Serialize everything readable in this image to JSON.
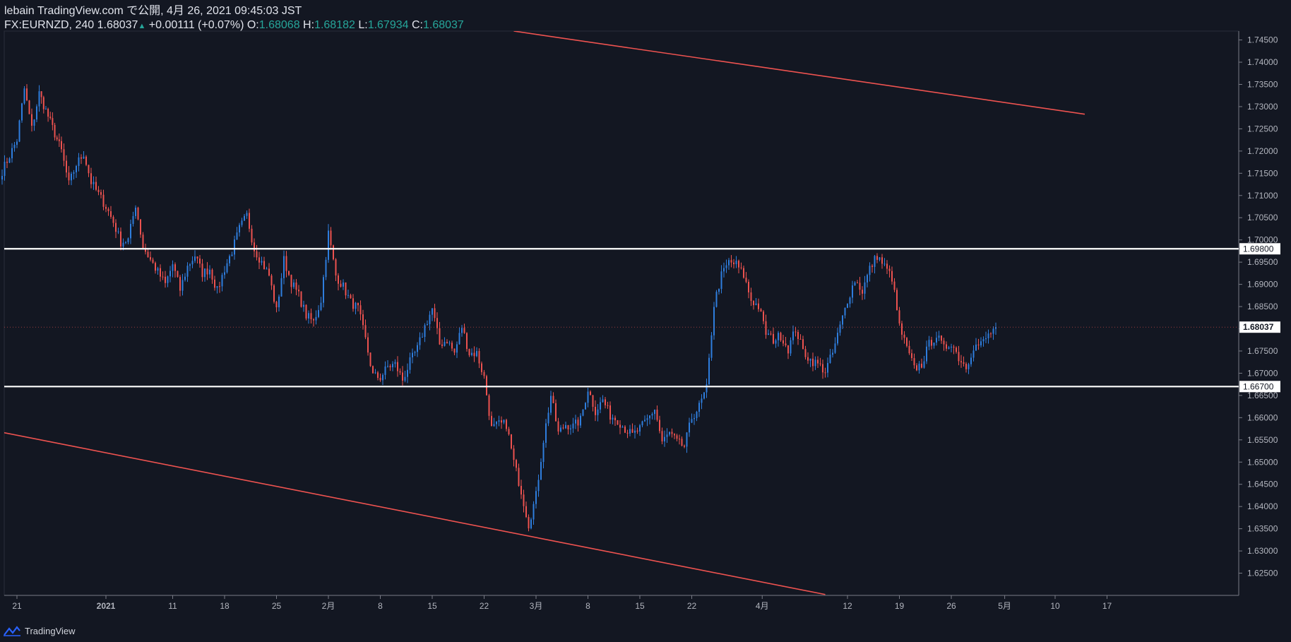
{
  "header": {
    "published": "lebain TradingView.com で公開, 4月 26, 2021 09:45:03 JST",
    "symbol": "FX:EURNZD, 240",
    "last": "1.68037",
    "change": "+0.00111 (+0.07%)",
    "o_label": "O:",
    "o_value": "1.68068",
    "h_label": "H:",
    "h_value": "1.68182",
    "l_label": "L:",
    "l_value": "1.67934",
    "c_label": "C:",
    "c_value": "1.68037"
  },
  "footer": {
    "brand": "TradingView"
  },
  "colors": {
    "bg": "#131722",
    "up": "#2f7fe0",
    "down": "#ef5350",
    "trend": "#ef5350",
    "level": "#ffffff",
    "axis": "#b2b5be"
  },
  "chart_data": {
    "type": "candlestick",
    "symbol": "FX:EURNZD",
    "timeframe": "240",
    "ylim": [
      1.62,
      1.747
    ],
    "y_ticks": [
      "1.62500",
      "1.63000",
      "1.63500",
      "1.64000",
      "1.64500",
      "1.65000",
      "1.65500",
      "1.66000",
      "1.66500",
      "1.67000",
      "1.67500",
      "1.68000",
      "1.68500",
      "1.69000",
      "1.69500",
      "1.70000",
      "1.70500",
      "1.71000",
      "1.71500",
      "1.72000",
      "1.72500",
      "1.73000",
      "1.73500",
      "1.74000",
      "1.74500"
    ],
    "x_ticks": [
      "21",
      "2021",
      "11",
      "18",
      "25",
      "2月",
      "8",
      "15",
      "22",
      "3月",
      "8",
      "15",
      "22",
      "4月",
      "12",
      "19",
      "26",
      "5月",
      "10",
      "17"
    ],
    "bold_x_ticks": [
      "2021"
    ],
    "horizontal_levels": [
      {
        "label": "1.69800",
        "value": 1.698
      },
      {
        "label": "1.66700",
        "value": 1.667
      }
    ],
    "price_tag": {
      "label": "1.68037",
      "value": 1.68037
    },
    "trendlines": [
      {
        "from": {
          "date": "2021-02-26",
          "price": 1.747
        },
        "to": {
          "date": "2021-05-14",
          "price": 1.7283
        }
      },
      {
        "from": {
          "date": "2020-12-19",
          "price": 1.6567
        },
        "to": {
          "date": "2021-04-09",
          "price": 1.6202
        }
      }
    ],
    "waypoints": [
      [
        "2020-12-19",
        1.7155
      ],
      [
        "2020-12-21",
        1.7225
      ],
      [
        "2020-12-22",
        1.734
      ],
      [
        "2020-12-23",
        1.725
      ],
      [
        "2020-12-24",
        1.733
      ],
      [
        "2020-12-27",
        1.72
      ],
      [
        "2020-12-28",
        1.7125
      ],
      [
        "2020-12-29",
        1.717
      ],
      [
        "2020-12-30",
        1.7195
      ],
      [
        "2020-12-31",
        1.713
      ],
      [
        "2021-01-02",
        1.7075
      ],
      [
        "2021-01-03",
        1.704
      ],
      [
        "2021-01-04",
        1.6995
      ],
      [
        "2021-01-05",
        1.7
      ],
      [
        "2021-01-06",
        1.708
      ],
      [
        "2021-01-07",
        1.6985
      ],
      [
        "2021-01-08",
        1.6955
      ],
      [
        "2021-01-10",
        1.69
      ],
      [
        "2021-01-11",
        1.6945
      ],
      [
        "2021-01-12",
        1.6888
      ],
      [
        "2021-01-13",
        1.694
      ],
      [
        "2021-01-14",
        1.6965
      ],
      [
        "2021-01-15",
        1.6925
      ],
      [
        "2021-01-16",
        1.6935
      ],
      [
        "2021-01-17",
        1.6885
      ],
      [
        "2021-01-18",
        1.6935
      ],
      [
        "2021-01-19",
        1.6975
      ],
      [
        "2021-01-20",
        1.7025
      ],
      [
        "2021-01-21",
        1.7055
      ],
      [
        "2021-01-22",
        1.698
      ],
      [
        "2021-01-24",
        1.692
      ],
      [
        "2021-01-25",
        1.684
      ],
      [
        "2021-01-26",
        1.6955
      ],
      [
        "2021-01-27",
        1.6905
      ],
      [
        "2021-01-28",
        1.6875
      ],
      [
        "2021-01-29",
        1.683
      ],
      [
        "2021-01-30",
        1.6815
      ],
      [
        "2021-01-31",
        1.6865
      ],
      [
        "2021-02-01",
        1.7015
      ],
      [
        "2021-02-02",
        1.692
      ],
      [
        "2021-02-03",
        1.6895
      ],
      [
        "2021-02-04",
        1.686
      ],
      [
        "2021-02-05",
        1.6845
      ],
      [
        "2021-02-06",
        1.6775
      ],
      [
        "2021-02-07",
        1.6695
      ],
      [
        "2021-02-08",
        1.669
      ],
      [
        "2021-02-09",
        1.6715
      ],
      [
        "2021-02-10",
        1.672
      ],
      [
        "2021-02-11",
        1.6685
      ],
      [
        "2021-02-12",
        1.6725
      ],
      [
        "2021-02-13",
        1.6755
      ],
      [
        "2021-02-14",
        1.6805
      ],
      [
        "2021-02-15",
        1.6845
      ],
      [
        "2021-02-16",
        1.6765
      ],
      [
        "2021-02-17",
        1.6775
      ],
      [
        "2021-02-18",
        1.6745
      ],
      [
        "2021-02-19",
        1.6805
      ],
      [
        "2021-02-20",
        1.6745
      ],
      [
        "2021-02-21",
        1.6745
      ],
      [
        "2021-02-22",
        1.669
      ],
      [
        "2021-02-23",
        1.6575
      ],
      [
        "2021-02-24",
        1.6585
      ],
      [
        "2021-02-25",
        1.6585
      ],
      [
        "2021-02-26",
        1.65
      ],
      [
        "2021-02-27",
        1.6435
      ],
      [
        "2021-02-28",
        1.636
      ],
      [
        "2021-03-01",
        1.6425
      ],
      [
        "2021-03-02",
        1.655
      ],
      [
        "2021-03-03",
        1.665
      ],
      [
        "2021-03-04",
        1.6565
      ],
      [
        "2021-03-05",
        1.6585
      ],
      [
        "2021-03-06",
        1.658
      ],
      [
        "2021-03-07",
        1.6595
      ],
      [
        "2021-03-08",
        1.6665
      ],
      [
        "2021-03-09",
        1.6615
      ],
      [
        "2021-03-10",
        1.664
      ],
      [
        "2021-03-11",
        1.6605
      ],
      [
        "2021-03-12",
        1.6595
      ],
      [
        "2021-03-13",
        1.6575
      ],
      [
        "2021-03-14",
        1.656
      ],
      [
        "2021-03-15",
        1.6575
      ],
      [
        "2021-03-16",
        1.6595
      ],
      [
        "2021-03-17",
        1.662
      ],
      [
        "2021-03-18",
        1.6545
      ],
      [
        "2021-03-19",
        1.6565
      ],
      [
        "2021-03-20",
        1.6545
      ],
      [
        "2021-03-21",
        1.6535
      ],
      [
        "2021-03-22",
        1.66
      ],
      [
        "2021-03-23",
        1.6625
      ],
      [
        "2021-03-24",
        1.6665
      ],
      [
        "2021-03-25",
        1.6855
      ],
      [
        "2021-03-26",
        1.692
      ],
      [
        "2021-03-27",
        1.695
      ],
      [
        "2021-03-28",
        1.6945
      ],
      [
        "2021-03-29",
        1.692
      ],
      [
        "2021-03-30",
        1.6865
      ],
      [
        "2021-03-31",
        1.685
      ],
      [
        "2021-04-01",
        1.679
      ],
      [
        "2021-04-02",
        1.6775
      ],
      [
        "2021-04-03",
        1.6785
      ],
      [
        "2021-04-04",
        1.6755
      ],
      [
        "2021-04-05",
        1.68
      ],
      [
        "2021-04-06",
        1.675
      ],
      [
        "2021-04-07",
        1.673
      ],
      [
        "2021-04-08",
        1.672
      ],
      [
        "2021-04-09",
        1.6705
      ],
      [
        "2021-04-10",
        1.6745
      ],
      [
        "2021-04-11",
        1.6805
      ],
      [
        "2021-04-12",
        1.6865
      ],
      [
        "2021-04-13",
        1.691
      ],
      [
        "2021-04-14",
        1.6885
      ],
      [
        "2021-04-15",
        1.6935
      ],
      [
        "2021-04-16",
        1.6965
      ],
      [
        "2021-04-17",
        1.694
      ],
      [
        "2021-04-18",
        1.6915
      ],
      [
        "2021-04-19",
        1.6805
      ],
      [
        "2021-04-20",
        1.6755
      ],
      [
        "2021-04-21",
        1.671
      ],
      [
        "2021-04-22",
        1.672
      ],
      [
        "2021-04-23",
        1.6765
      ],
      [
        "2021-04-24",
        1.6785
      ],
      [
        "2021-04-25",
        1.6755
      ],
      [
        "2021-04-26",
        1.677
      ],
      [
        "2021-04-27",
        1.6735
      ],
      [
        "2021-04-28",
        1.6715
      ],
      [
        "2021-04-29",
        1.676
      ],
      [
        "2021-04-30",
        1.6765
      ],
      [
        "2021-05-01",
        1.6785
      ],
      [
        "2021-05-02",
        1.68037
      ]
    ]
  }
}
